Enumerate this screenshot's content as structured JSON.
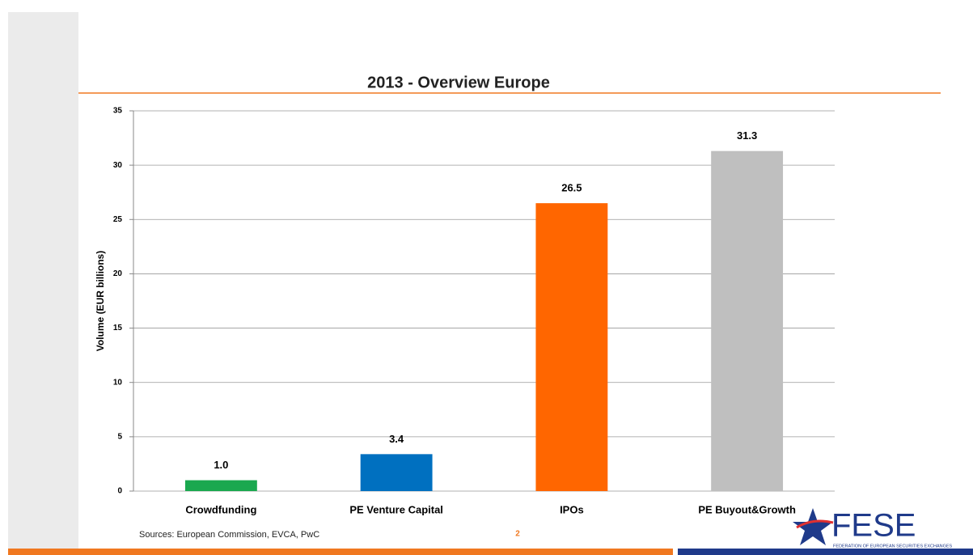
{
  "chart_data": {
    "type": "bar",
    "title": "2013 - Overview Europe",
    "y_label": "Volume (EUR billions)",
    "categories": [
      "Crowdfunding",
      "PE Venture Capital",
      "IPOs",
      "PE Buyout&Growth"
    ],
    "values": [
      1.0,
      3.4,
      26.5,
      31.3
    ],
    "value_labels": [
      "1.0",
      "3.4",
      "26.5",
      "31.3"
    ],
    "colors": [
      "#1aa84f",
      "#0070c0",
      "#ff6600",
      "#bfbfbf"
    ],
    "ylim": [
      0,
      35
    ],
    "yticks": [
      0,
      5,
      10,
      15,
      20,
      25,
      30,
      35
    ],
    "grid": true
  },
  "footer": {
    "source": "Sources: European Commission, EVCA, PwC",
    "page": "2"
  },
  "logo": {
    "name": "FESE",
    "tagline": "FEDERATION OF EUROPEAN SECURITIES EXCHANGES"
  }
}
